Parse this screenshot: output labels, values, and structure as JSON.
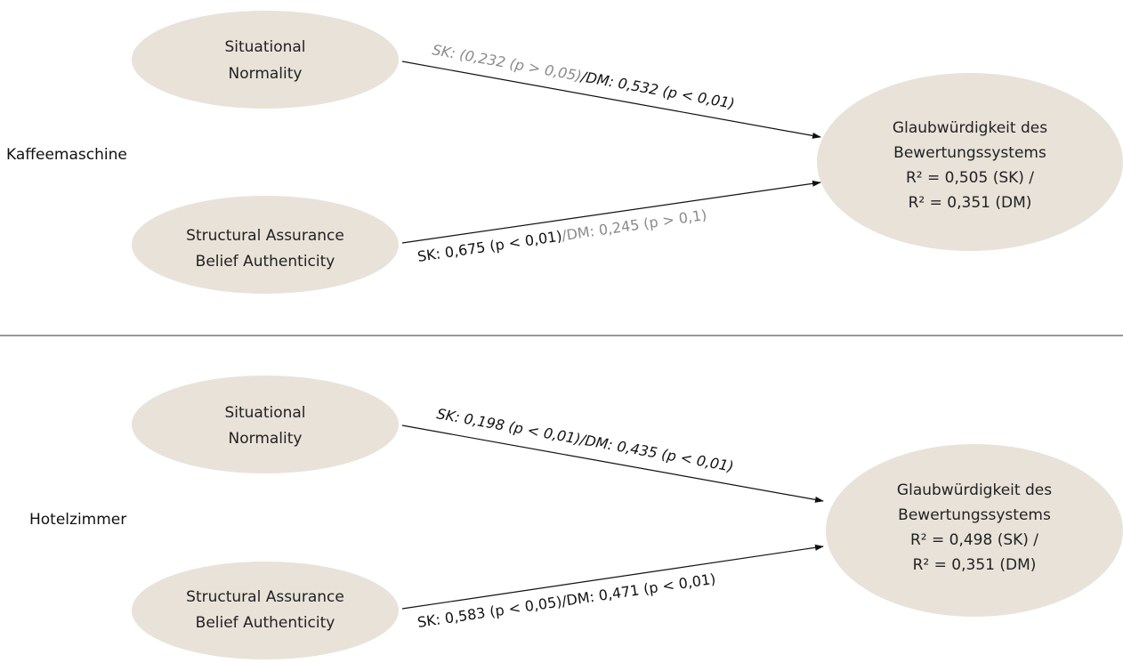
{
  "groups": [
    {
      "label": "Kaffeemaschine",
      "node_sn": [
        "Situational",
        "Normality"
      ],
      "node_sa": [
        "Structural Assurance",
        "Belief Authenticity"
      ],
      "node_target": [
        "Glaubwürdigkeit des",
        "Bewertungssystems",
        "R² = 0,505 (SK) /",
        "R² = 0,351 (DM)"
      ],
      "edge_top": [
        "SK: (0,232 (p > 0,05)",
        "/DM: 0,532 (p < 0,01)"
      ],
      "edge_bottom": [
        "SK: 0,675 (p < 0,01)",
        "/DM: 0,245 (p > 0,1)"
      ]
    },
    {
      "label": "Hotelzimmer",
      "node_sn": [
        "Situational",
        "Normality"
      ],
      "node_sa": [
        "Structural Assurance",
        "Belief Authenticity"
      ],
      "node_target": [
        "Glaubwürdigkeit des",
        "Bewertungssystems",
        "R² = 0,498 (SK) /",
        "R² = 0,351 (DM)"
      ],
      "edge_top": [
        "SK: 0,198 (p < 0,01)",
        "/DM: 0,435 (p < 0,01)"
      ],
      "edge_bottom": [
        "SK: 0,583 (p < 0,05)",
        "/DM: 0,471 (p < 0,01)"
      ]
    }
  ],
  "colors": {
    "node_fill": "#e8e2d9",
    "significant": "#111111",
    "not_significant": "#8a8a8a"
  }
}
